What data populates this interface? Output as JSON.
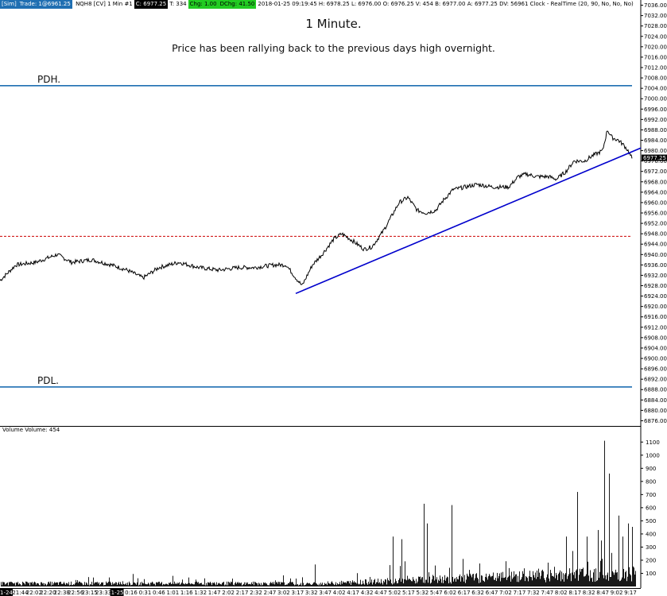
{
  "header": {
    "sim": "[Sim]",
    "trade": "Trade: 1@6961.25",
    "symbol": "NQH8 [CV]  1 Min  #1",
    "close": "C: 6977.25",
    "ticks": "T: 334",
    "chg": "Chg: 1.00",
    "dchg": "DChg: 41.50",
    "info": "2018-01-25 09:19:45 H: 6978.25 L: 6976.00 O: 6976.25 V: 454 B: 6977.00 A: 6977.25 DV: 56961 Clock - RealTime  (20, 90, No, No, No)"
  },
  "colors": {
    "price": "#000000",
    "pd_levels": "#1f6fb2",
    "trendline": "#0000cc",
    "dashed_level": "#cc0000",
    "volume": "#000000"
  },
  "chart_data": [
    {
      "type": "line",
      "title": "1 Minute.",
      "subtitle": "Price has been rallying back to the previous days high overnight.",
      "ylim": [
        6874,
        7038
      ],
      "y_ticks": [
        6876,
        6880,
        6884,
        6888,
        6892,
        6896,
        6900,
        6904,
        6908,
        6912,
        6916,
        6920,
        6924,
        6928,
        6932,
        6936,
        6940,
        6944,
        6948,
        6952,
        6956,
        6960,
        6964,
        6968,
        6972,
        6976,
        6980,
        6984,
        6988,
        6992,
        6996,
        7000,
        7004,
        7008,
        7012,
        7016,
        7020,
        7024,
        7028,
        7032,
        7036
      ],
      "y_tick_labels": [
        "6876.00",
        "6880.00",
        "6884.00",
        "6888.00",
        "6892.00",
        "6896.00",
        "6900.00",
        "6904.00",
        "6908.00",
        "6912.00",
        "6916.00",
        "6920.00",
        "6924.00",
        "6928.00",
        "6932.00",
        "6936.00",
        "6940.00",
        "6944.00",
        "6948.00",
        "6952.00",
        "6956.00",
        "6960.00",
        "6964.00",
        "6968.00",
        "6972.00",
        "6976.00",
        "6980.00",
        "6984.00",
        "6988.00",
        "6992.00",
        "6996.00",
        "7000.00",
        "7004.00",
        "7008.00",
        "7012.00",
        "7016.00",
        "7020.00",
        "7024.00",
        "7028.00",
        "7032.00",
        "7036.00"
      ],
      "x_ticks": [
        "1-24",
        "21:44",
        "22:02",
        "22:20",
        "22:38",
        "22:56",
        "23:15",
        "23:33",
        "1-25",
        "0:16",
        "0:31",
        "0:46",
        "1:01",
        "1:16",
        "1:32",
        "1:47",
        "2:02",
        "2:17",
        "2:32",
        "2:47",
        "3:02",
        "3:17",
        "3:32",
        "3:47",
        "4:02",
        "4:17",
        "4:32",
        "4:47",
        "5:02",
        "5:17",
        "5:32",
        "5:47",
        "6:02",
        "6:17",
        "6:32",
        "6:47",
        "7:02",
        "7:17",
        "7:32",
        "7:47",
        "8:02",
        "8:17",
        "8:32",
        "8:47",
        "9:02",
        "9:17"
      ],
      "series": [
        {
          "points": [
            [
              0,
              6930
            ],
            [
              20,
              6936
            ],
            [
              45,
              6937
            ],
            [
              72,
              6940
            ],
            [
              90,
              6937
            ],
            [
              115,
              6938
            ],
            [
              140,
              6936
            ],
            [
              160,
              6934
            ],
            [
              180,
              6931
            ],
            [
              200,
              6935
            ],
            [
              225,
              6937
            ],
            [
              250,
              6935
            ],
            [
              275,
              6934
            ],
            [
              300,
              6935
            ],
            [
              320,
              6935
            ],
            [
              345,
              6936
            ],
            [
              360,
              6936
            ],
            [
              372,
              6931
            ],
            [
              380,
              6928
            ],
            [
              393,
              6936
            ],
            [
              405,
              6940
            ],
            [
              420,
              6946
            ],
            [
              430,
              6948
            ],
            [
              445,
              6945
            ],
            [
              458,
              6942
            ],
            [
              468,
              6943
            ],
            [
              482,
              6949
            ],
            [
              493,
              6955
            ],
            [
              502,
              6960
            ],
            [
              513,
              6962
            ],
            [
              525,
              6957
            ],
            [
              536,
              6956
            ],
            [
              548,
              6957
            ],
            [
              558,
              6961
            ],
            [
              570,
              6965
            ],
            [
              585,
              6966
            ],
            [
              600,
              6967
            ],
            [
              620,
              6966
            ],
            [
              640,
              6966
            ],
            [
              652,
              6970
            ],
            [
              662,
              6971
            ],
            [
              675,
              6970
            ],
            [
              690,
              6970
            ],
            [
              700,
              6969
            ],
            [
              712,
              6972
            ],
            [
              722,
              6976
            ],
            [
              735,
              6976
            ],
            [
              745,
              6978
            ],
            [
              758,
              6980
            ],
            [
              764,
              6988
            ],
            [
              770,
              6985
            ],
            [
              778,
              6984
            ],
            [
              785,
              6982
            ],
            [
              790,
              6980
            ],
            [
              795,
              6977
            ]
          ]
        }
      ],
      "last_price": "6977.25",
      "levels": {
        "pdh": {
          "label": "PDH.",
          "value": 7005
        },
        "pdl": {
          "label": "PDL.",
          "value": 6889
        },
        "dashed": {
          "value": 6947
        }
      },
      "trendline": {
        "from": [
          372,
          6925
        ],
        "to": [
          806,
          6981
        ]
      }
    },
    {
      "type": "bar",
      "title": "Volume  Volume: 454",
      "ylim": [
        0,
        1150
      ],
      "y_ticks": [
        100,
        200,
        300,
        400,
        500,
        600,
        700,
        800,
        900,
        1000,
        1100
      ],
      "spikes": [
        [
          372,
          60
        ],
        [
          380,
          70
        ],
        [
          494,
          380
        ],
        [
          505,
          360
        ],
        [
          533,
          630
        ],
        [
          537,
          480
        ],
        [
          568,
          620
        ],
        [
          582,
          210
        ],
        [
          640,
          140
        ],
        [
          697,
          150
        ],
        [
          712,
          380
        ],
        [
          720,
          270
        ],
        [
          726,
          720
        ],
        [
          738,
          380
        ],
        [
          752,
          430
        ],
        [
          756,
          350
        ],
        [
          760,
          1110
        ],
        [
          766,
          860
        ],
        [
          778,
          540
        ],
        [
          783,
          380
        ],
        [
          790,
          480
        ],
        [
          795,
          454
        ]
      ]
    }
  ]
}
